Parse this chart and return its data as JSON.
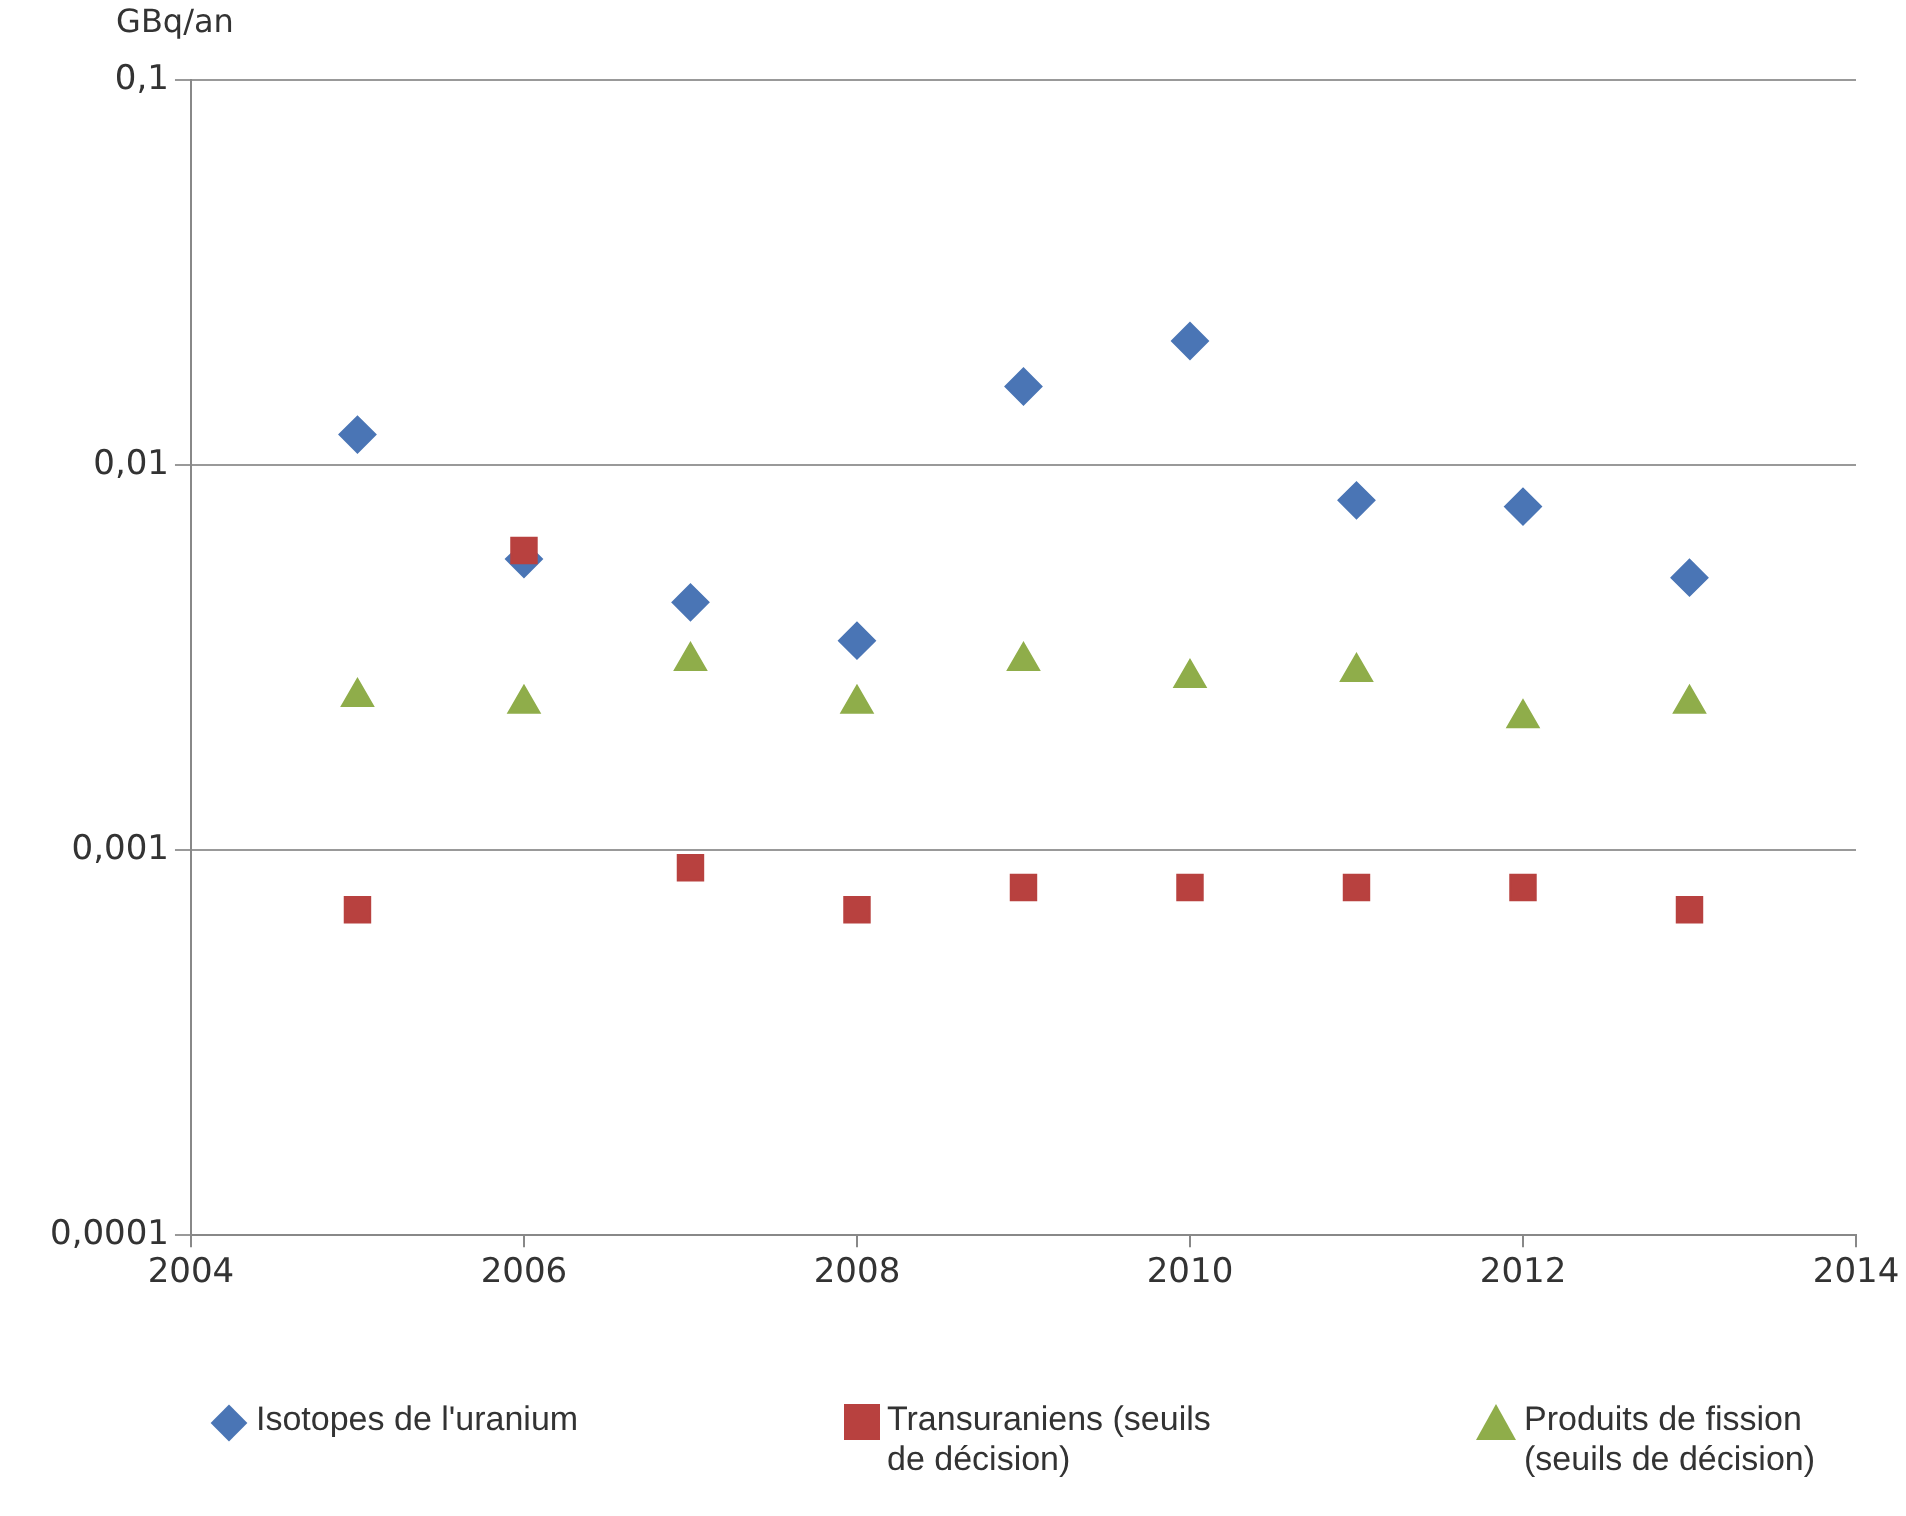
{
  "chart_data": {
    "type": "scatter",
    "ylabel": "GBq/an",
    "log": "y",
    "grid": "y",
    "legend": "bottom",
    "x": [
      2005,
      2006,
      2007,
      2008,
      2009,
      2010,
      2011,
      2012,
      2013
    ],
    "xlim": [
      2004,
      2014
    ],
    "xticks": [
      2004,
      2006,
      2008,
      2010,
      2012,
      2014
    ],
    "ylim": [
      0.0001,
      0.1
    ],
    "yticks": [
      {
        "value": 0.0001,
        "label": "0,0001"
      },
      {
        "value": 0.001,
        "label": "0,001"
      },
      {
        "value": 0.01,
        "label": "0,01"
      },
      {
        "value": 0.1,
        "label": "0,1"
      }
    ],
    "series": [
      {
        "name": "Isotopes de l'uranium",
        "color": "#4a75b5",
        "marker": "diamond",
        "values": [
          0.012,
          0.0057,
          0.0044,
          0.0035,
          0.016,
          0.021,
          0.0081,
          0.0078,
          0.0051
        ]
      },
      {
        "name": "Transuraniens (seuils de décision)",
        "color": "#b8413f",
        "marker": "square",
        "values": [
          0.0007,
          0.006,
          0.0009,
          0.0007,
          0.0008,
          0.0008,
          0.0008,
          0.0008,
          0.0007
        ]
      },
      {
        "name": "Produits de fission (seuils de décision)",
        "color": "#8fad4a",
        "marker": "triangle",
        "values": [
          0.0025,
          0.0024,
          0.0031,
          0.0024,
          0.0031,
          0.0028,
          0.0029,
          0.0022,
          0.0024
        ]
      }
    ]
  }
}
